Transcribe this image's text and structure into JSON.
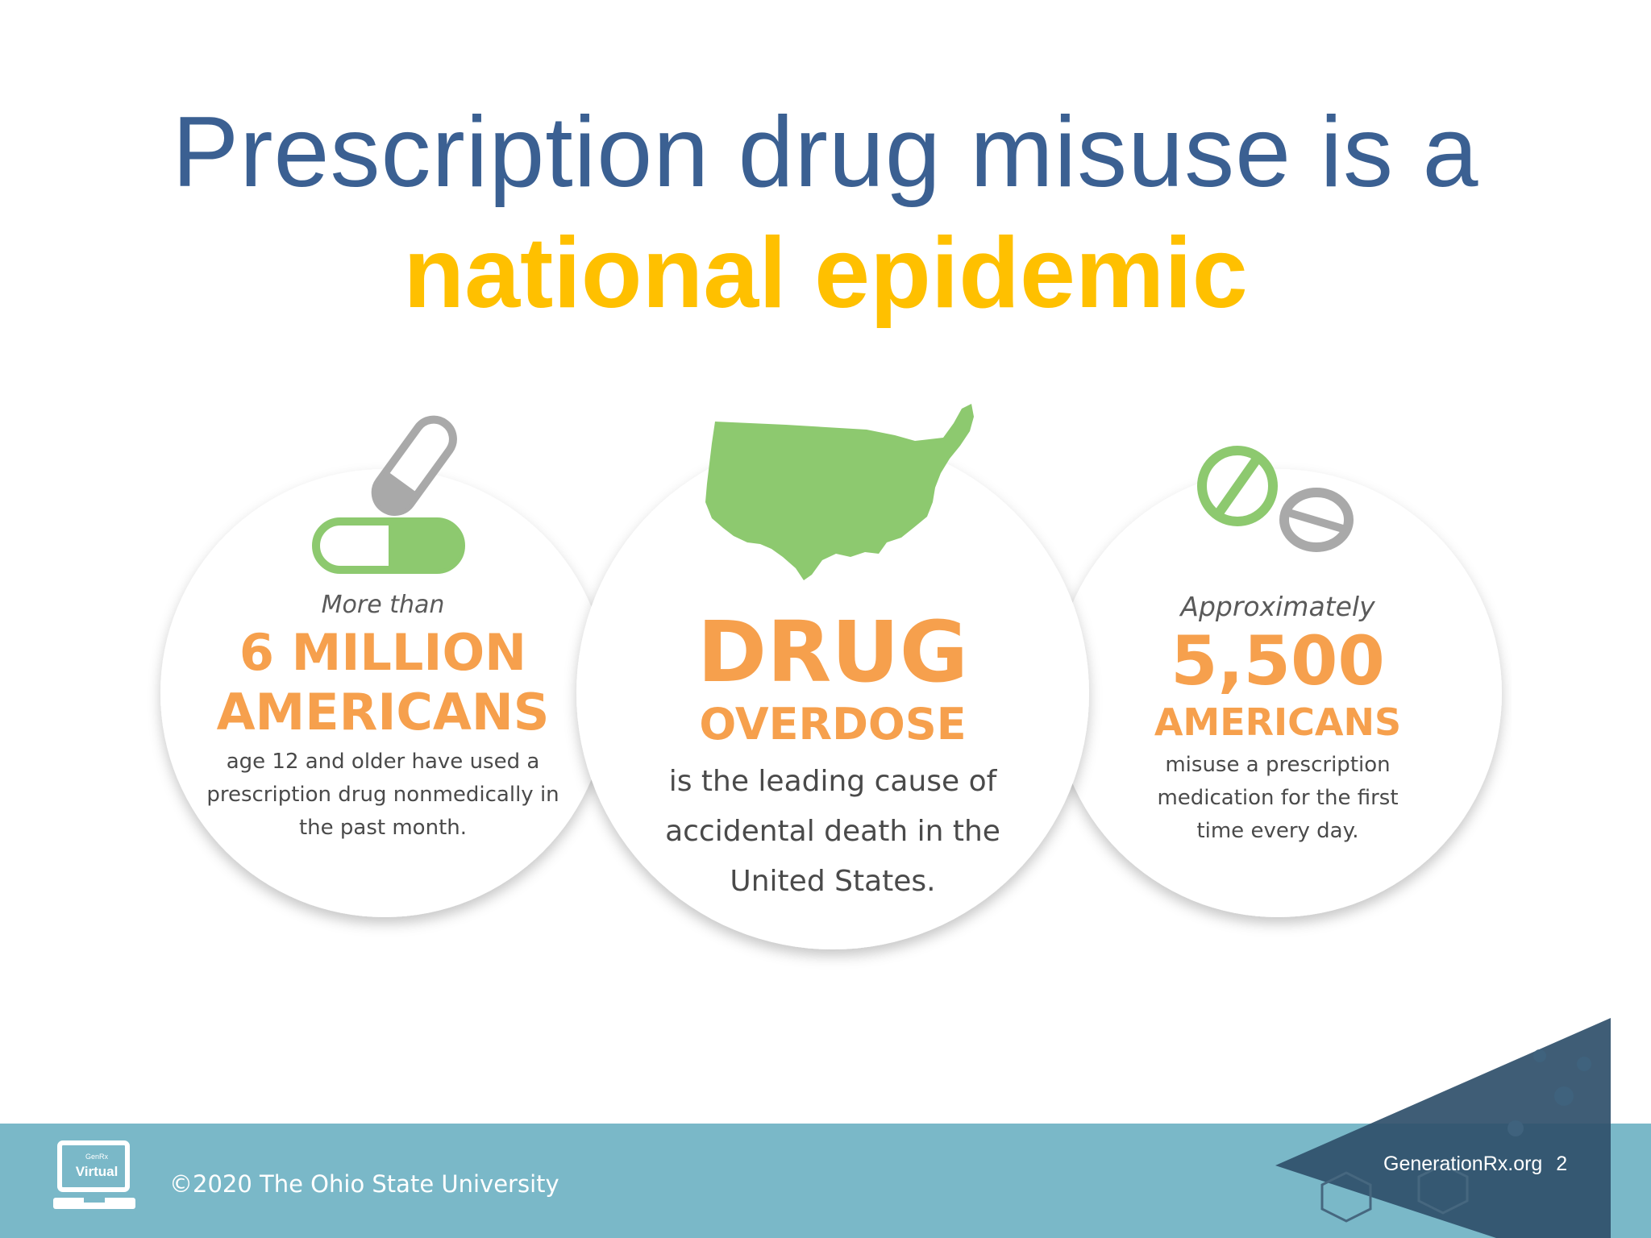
{
  "slide": {
    "title_line1": "Prescription drug misuse is a",
    "title_line2": "national epidemic"
  },
  "infographic": {
    "left": {
      "intro": "More than",
      "big1": "6 MILLION",
      "big2": "AMERICANS",
      "body1": "age 12 and older have used a",
      "body2": "prescription drug nonmedically in",
      "body3": "the past month.",
      "icon": "capsule-icon"
    },
    "center": {
      "big1": "DRUG",
      "big2": "OVERDOSE",
      "body1": "is the leading cause of",
      "body2": "accidental death in the",
      "body3": "United States.",
      "icon": "usa-map-icon"
    },
    "right": {
      "intro": "Approximately",
      "big1": "5,500",
      "big2": "AMERICANS",
      "body1": "misuse a prescription",
      "body2": "medication for the first",
      "body3": "time every day.",
      "icon": "tablets-icon"
    },
    "colors": {
      "orange": "#f6a04d",
      "green": "#8dc96f",
      "gray": "#a9a9a9"
    }
  },
  "footer": {
    "logo_top": "GenRx",
    "logo_text": "Virtual",
    "copyright": "©2020  The Ohio State University",
    "site": "GenerationRx.org",
    "page_number": "2",
    "bar_color": "#7ab8c8"
  },
  "colors": {
    "title_blue": "#3b6092",
    "title_gold": "#ffc000"
  }
}
